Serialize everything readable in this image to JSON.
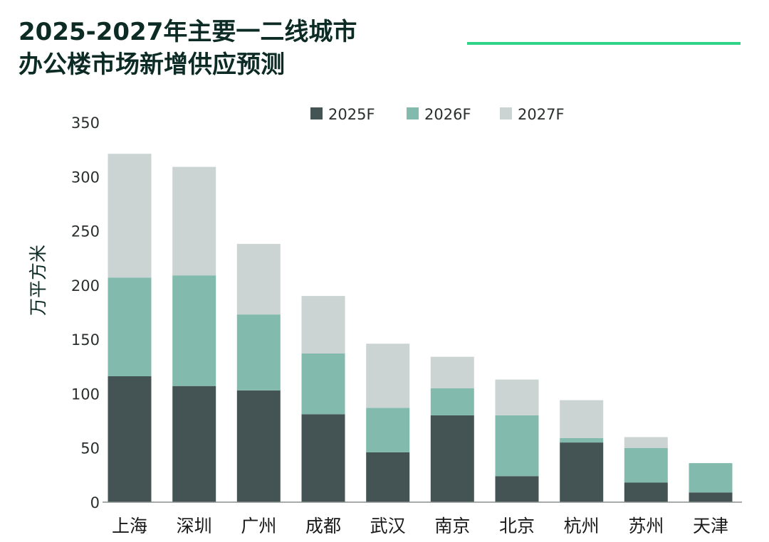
{
  "title": {
    "line1": "2025-2027年主要一二线城市",
    "line2": "办公楼市场新增供应预测"
  },
  "colors": {
    "accent_line": "#2fd488",
    "series": [
      "#445454",
      "#82bbad",
      "#cbd4d3"
    ],
    "axis": "#8a8f8e"
  },
  "chart_data": {
    "type": "bar",
    "stacked": true,
    "categories": [
      "上海",
      "深圳",
      "广州",
      "成都",
      "武汉",
      "南京",
      "北京",
      "杭州",
      "苏州",
      "天津"
    ],
    "series": [
      {
        "name": "2025F",
        "values": [
          116,
          107,
          103,
          81,
          46,
          80,
          24,
          55,
          18,
          9
        ]
      },
      {
        "name": "2026F",
        "values": [
          91,
          102,
          70,
          56,
          41,
          25,
          56,
          4,
          32,
          27
        ]
      },
      {
        "name": "2027F",
        "values": [
          114,
          100,
          65,
          53,
          59,
          29,
          33,
          35,
          10,
          0
        ]
      }
    ],
    "ylabel": "万平方米",
    "ylim": [
      0,
      350
    ],
    "yticks": [
      0,
      50,
      100,
      150,
      200,
      250,
      300,
      350
    ],
    "grid": false,
    "legend_position": "top-center"
  }
}
